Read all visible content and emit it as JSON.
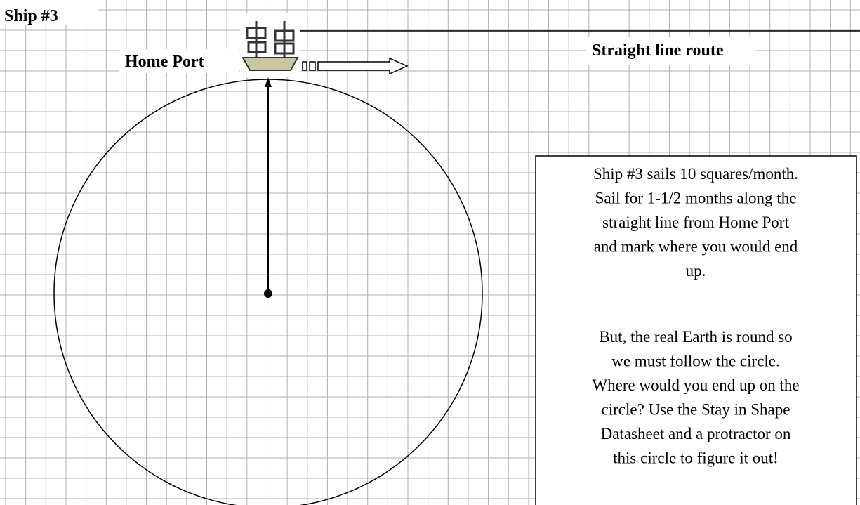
{
  "title": "Ship #3",
  "labels": {
    "home_port": "Home Port",
    "route": "Straight line route"
  },
  "instructions": {
    "paragraphs": [
      [
        "Ship #3 sails 10 squares/month.",
        "Sail for 1-1/2 months along the",
        "straight line from Home Port",
        "and mark where you would end",
        "up."
      ],
      [
        "But, the real Earth is round so",
        "we must follow the circle.",
        "Where would you end up on the",
        "circle? Use the Stay in Shape",
        "Datasheet and a protractor on",
        "this circle to figure it out!"
      ]
    ]
  }
}
